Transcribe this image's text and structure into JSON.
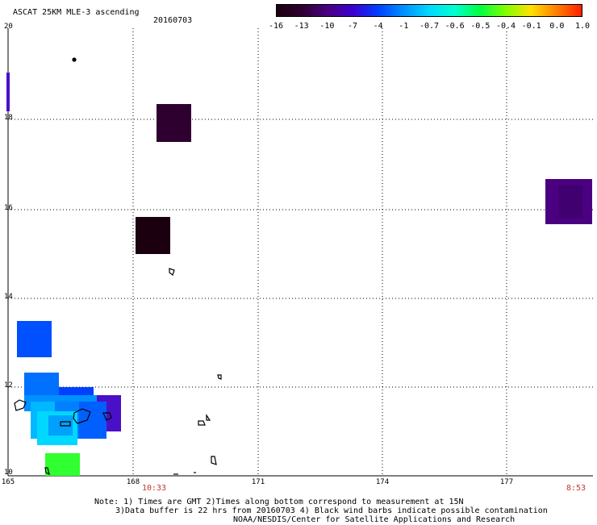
{
  "header": {
    "title": "ASCAT 25KM MLE-3 ascending",
    "date": "20160703"
  },
  "colorbar": {
    "ticks": [
      "-16",
      "-13",
      "-10",
      "-7",
      "-4",
      "-1",
      "-0.7",
      "-0.6",
      "-0.5",
      "-0.4",
      "-0.1",
      "0.0",
      "1.0"
    ],
    "colors": [
      "#1b0010",
      "#2e0030",
      "#4a0080",
      "#3a00d0",
      "#0040ff",
      "#0090ff",
      "#00d8ff",
      "#00ffd0",
      "#00ff40",
      "#80ff00",
      "#ffe000",
      "#ff8000",
      "#ff2000"
    ]
  },
  "map": {
    "lon_range": [
      165,
      179
    ],
    "lat_range": [
      10,
      20
    ],
    "lat_ticks": [
      "20",
      "18",
      "16",
      "14",
      "12",
      "10"
    ],
    "lon_ticks": [
      "165",
      "168",
      "171",
      "174",
      "177"
    ],
    "time_labels": [
      {
        "text": "10:33",
        "lon": 168.5
      },
      {
        "text": "8:53",
        "lon": 178.6
      }
    ]
  },
  "footer": {
    "line1": "Note: 1) Times are GMT 2)Times along bottom correspond to measurement at 15N",
    "line2": "3)Data buffer is 22 hrs from 20160703 4) Black wind barbs indicate possible contamination",
    "line3": "NOAA/NESDIS/Center for Satellite Applications and Research"
  }
}
